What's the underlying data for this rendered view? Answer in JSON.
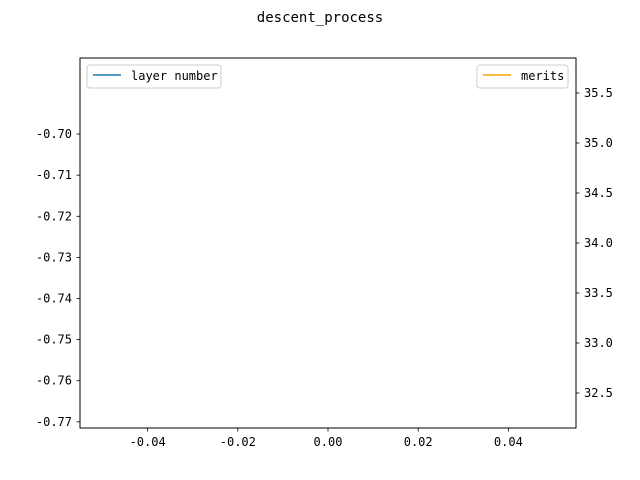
{
  "chart_data": {
    "type": "line",
    "title": "descent_process",
    "grid": false,
    "x": [],
    "xlim": [
      -0.055,
      0.055
    ],
    "x_ticks": [
      "-0.04",
      "-0.02",
      "0.00",
      "0.02",
      "0.04"
    ],
    "x_tick_values": [
      -0.04,
      -0.02,
      0.0,
      0.02,
      0.04
    ],
    "left_axis": {
      "ylim": [
        -0.7715,
        -0.6815
      ],
      "ticks": [
        "-0.70",
        "-0.71",
        "-0.72",
        "-0.73",
        "-0.74",
        "-0.75",
        "-0.76",
        "-0.77"
      ],
      "tick_values": [
        -0.7,
        -0.71,
        -0.72,
        -0.73,
        -0.74,
        -0.75,
        -0.76,
        -0.77
      ]
    },
    "right_axis": {
      "ylim": [
        32.15,
        35.85
      ],
      "ticks": [
        "35.5",
        "35.0",
        "34.5",
        "34.0",
        "33.5",
        "33.0",
        "32.5"
      ],
      "tick_values": [
        35.5,
        35.0,
        34.5,
        34.0,
        33.5,
        33.0,
        32.5
      ]
    },
    "series": [
      {
        "name": "layer number",
        "axis": "left",
        "color": "#1f77b4",
        "values": [],
        "legend_position": "top-left"
      },
      {
        "name": "merits",
        "axis": "right",
        "color": "#ffa500",
        "values": [],
        "legend_position": "top-right"
      }
    ]
  }
}
